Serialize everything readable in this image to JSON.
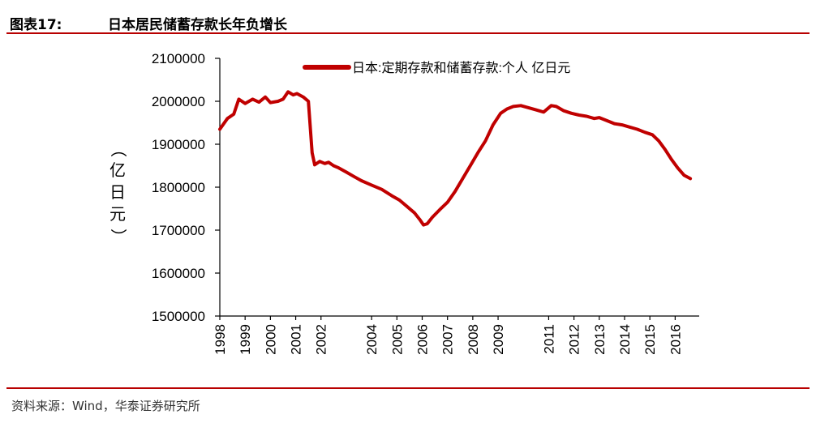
{
  "header": {
    "figure_label": "图表17:",
    "title": "日本居民储蓄存款长年负增长"
  },
  "footer": {
    "source": "资料来源：Wind，华泰证券研究所"
  },
  "colors": {
    "accent": "#b80000",
    "series": "#c00000"
  },
  "chart_data": {
    "type": "line",
    "title": "日本居民储蓄存款长年负增长",
    "ylabel": "（亿日元）",
    "xlabel": "",
    "ylim": [
      1500000,
      2100000
    ],
    "yticks": [
      1500000,
      1600000,
      1700000,
      1800000,
      1900000,
      2000000,
      2100000
    ],
    "ytick_labels": [
      "1500000",
      "1600000",
      "1700000",
      "1800000",
      "1900000",
      "2000000",
      "2100000"
    ],
    "xlim": [
      1998,
      2016.6
    ],
    "xticks": [
      1998,
      1999,
      2000,
      2001,
      2002,
      2004,
      2005,
      2006,
      2007,
      2008,
      2009,
      2011,
      2012,
      2013,
      2014,
      2015,
      2016
    ],
    "xtick_labels": [
      "1998",
      "1999",
      "2000",
      "2001",
      "2002",
      "2004",
      "2005",
      "2006",
      "2007",
      "2008",
      "2009",
      "2011",
      "2012",
      "2013",
      "2014",
      "2015",
      "2016"
    ],
    "grid": false,
    "legend_position": "top",
    "series": [
      {
        "name": "日本:定期存款和储蓄存款:个人 亿日元",
        "points": [
          [
            1998.0,
            1935000
          ],
          [
            1998.3,
            1960000
          ],
          [
            1998.55,
            1970000
          ],
          [
            1998.75,
            2005000
          ],
          [
            1999.0,
            1995000
          ],
          [
            1999.3,
            2005000
          ],
          [
            1999.55,
            1998000
          ],
          [
            1999.8,
            2010000
          ],
          [
            2000.0,
            1997000
          ],
          [
            2000.3,
            2000000
          ],
          [
            2000.5,
            2005000
          ],
          [
            2000.7,
            2022000
          ],
          [
            2000.9,
            2015000
          ],
          [
            2001.05,
            2018000
          ],
          [
            2001.3,
            2010000
          ],
          [
            2001.5,
            2000000
          ],
          [
            2001.65,
            1880000
          ],
          [
            2001.75,
            1852000
          ],
          [
            2001.95,
            1860000
          ],
          [
            2002.15,
            1855000
          ],
          [
            2002.3,
            1858000
          ],
          [
            2002.5,
            1850000
          ],
          [
            2002.7,
            1845000
          ],
          [
            2003.0,
            1835000
          ],
          [
            2003.3,
            1825000
          ],
          [
            2003.6,
            1815000
          ],
          [
            2004.0,
            1805000
          ],
          [
            2004.4,
            1795000
          ],
          [
            2004.8,
            1780000
          ],
          [
            2005.1,
            1770000
          ],
          [
            2005.4,
            1755000
          ],
          [
            2005.7,
            1740000
          ],
          [
            2005.9,
            1725000
          ],
          [
            2006.05,
            1712000
          ],
          [
            2006.2,
            1715000
          ],
          [
            2006.4,
            1730000
          ],
          [
            2006.7,
            1748000
          ],
          [
            2007.0,
            1765000
          ],
          [
            2007.3,
            1790000
          ],
          [
            2007.6,
            1820000
          ],
          [
            2007.9,
            1850000
          ],
          [
            2008.2,
            1880000
          ],
          [
            2008.5,
            1908000
          ],
          [
            2008.8,
            1945000
          ],
          [
            2009.1,
            1972000
          ],
          [
            2009.35,
            1982000
          ],
          [
            2009.6,
            1988000
          ],
          [
            2009.9,
            1990000
          ],
          [
            2010.2,
            1985000
          ],
          [
            2010.5,
            1980000
          ],
          [
            2010.8,
            1975000
          ],
          [
            2011.1,
            1990000
          ],
          [
            2011.3,
            1988000
          ],
          [
            2011.6,
            1978000
          ],
          [
            2011.9,
            1972000
          ],
          [
            2012.2,
            1968000
          ],
          [
            2012.5,
            1965000
          ],
          [
            2012.8,
            1960000
          ],
          [
            2013.0,
            1962000
          ],
          [
            2013.3,
            1955000
          ],
          [
            2013.6,
            1948000
          ],
          [
            2013.9,
            1945000
          ],
          [
            2014.2,
            1940000
          ],
          [
            2014.5,
            1935000
          ],
          [
            2014.8,
            1928000
          ],
          [
            2015.1,
            1922000
          ],
          [
            2015.35,
            1908000
          ],
          [
            2015.6,
            1888000
          ],
          [
            2015.85,
            1865000
          ],
          [
            2016.1,
            1845000
          ],
          [
            2016.35,
            1828000
          ],
          [
            2016.6,
            1820000
          ]
        ]
      }
    ]
  }
}
